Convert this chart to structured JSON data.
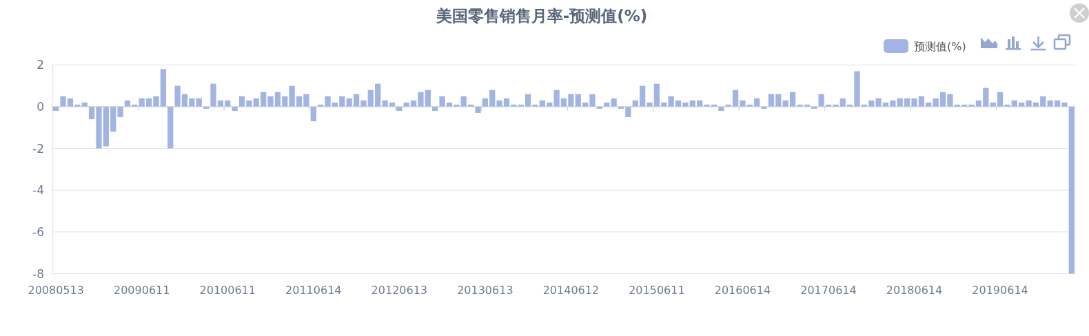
{
  "chart_data": {
    "type": "bar",
    "title": "美国零售销售月率-预测值(%)",
    "categories": [
      "20080513",
      null,
      null,
      null,
      null,
      null,
      null,
      null,
      null,
      null,
      null,
      null,
      "20090611",
      null,
      null,
      null,
      null,
      null,
      null,
      null,
      null,
      null,
      null,
      null,
      "20100611",
      null,
      null,
      null,
      null,
      null,
      null,
      null,
      null,
      null,
      null,
      null,
      "20110614",
      null,
      null,
      null,
      null,
      null,
      null,
      null,
      null,
      null,
      null,
      null,
      "20120613",
      null,
      null,
      null,
      null,
      null,
      null,
      null,
      null,
      null,
      null,
      null,
      "20130613",
      null,
      null,
      null,
      null,
      null,
      null,
      null,
      null,
      null,
      null,
      null,
      "20140612",
      null,
      null,
      null,
      null,
      null,
      null,
      null,
      null,
      null,
      null,
      null,
      "20150611",
      null,
      null,
      null,
      null,
      null,
      null,
      null,
      null,
      null,
      null,
      null,
      "20160614",
      null,
      null,
      null,
      null,
      null,
      null,
      null,
      null,
      null,
      null,
      null,
      "20170614",
      null,
      null,
      null,
      null,
      null,
      null,
      null,
      null,
      null,
      null,
      null,
      "20180614",
      null,
      null,
      null,
      null,
      null,
      null,
      null,
      null,
      null,
      null,
      null,
      "20190614",
      null,
      null,
      null,
      null,
      null,
      null,
      null,
      null,
      null,
      null
    ],
    "series": [
      {
        "name": "预测值(%)",
        "color": "#a2b5e2",
        "values": [
          -0.2,
          0.5,
          0.4,
          0.1,
          0.2,
          -0.6,
          -2.0,
          -1.9,
          -1.2,
          -0.5,
          0.3,
          0.1,
          0.4,
          0.4,
          0.5,
          1.8,
          -2.0,
          1.0,
          0.6,
          0.4,
          0.4,
          -0.1,
          1.1,
          0.3,
          0.3,
          -0.2,
          0.5,
          0.3,
          0.4,
          0.7,
          0.5,
          0.7,
          0.5,
          1.0,
          0.5,
          0.6,
          -0.7,
          0.1,
          0.5,
          0.2,
          0.5,
          0.4,
          0.6,
          0.3,
          0.8,
          1.1,
          0.3,
          0.2,
          -0.2,
          0.2,
          0.3,
          0.7,
          0.8,
          -0.2,
          0.5,
          0.2,
          0.1,
          0.5,
          0.1,
          -0.3,
          0.4,
          0.8,
          0.3,
          0.4,
          0.1,
          0.1,
          0.6,
          0.1,
          0.3,
          0.2,
          0.8,
          0.4,
          0.6,
          0.6,
          0.2,
          0.6,
          -0.1,
          0.2,
          0.4,
          -0.1,
          -0.5,
          0.3,
          1.0,
          0.2,
          1.1,
          0.2,
          0.5,
          0.3,
          0.2,
          0.3,
          0.3,
          0.1,
          0.1,
          -0.2,
          0.1,
          0.8,
          0.3,
          0.1,
          0.4,
          -0.1,
          0.6,
          0.6,
          0.3,
          0.7,
          0.1,
          0.1,
          -0.1,
          0.6,
          0.1,
          0.1,
          0.4,
          0.1,
          1.7,
          0.1,
          0.3,
          0.4,
          0.2,
          0.3,
          0.4,
          0.4,
          0.4,
          0.5,
          0.2,
          0.4,
          0.7,
          0.6,
          0.1,
          0.1,
          0.1,
          0.3,
          0.9,
          0.2,
          0.7,
          0.1,
          0.3,
          0.2,
          0.3,
          0.2,
          0.5,
          0.3,
          0.3,
          0.2,
          -8.0
        ]
      }
    ],
    "ylim": [
      -8,
      2
    ],
    "yticks": [
      -8,
      -6,
      -4,
      -2,
      0,
      2
    ],
    "grid": "y",
    "legend": "top right"
  }
}
